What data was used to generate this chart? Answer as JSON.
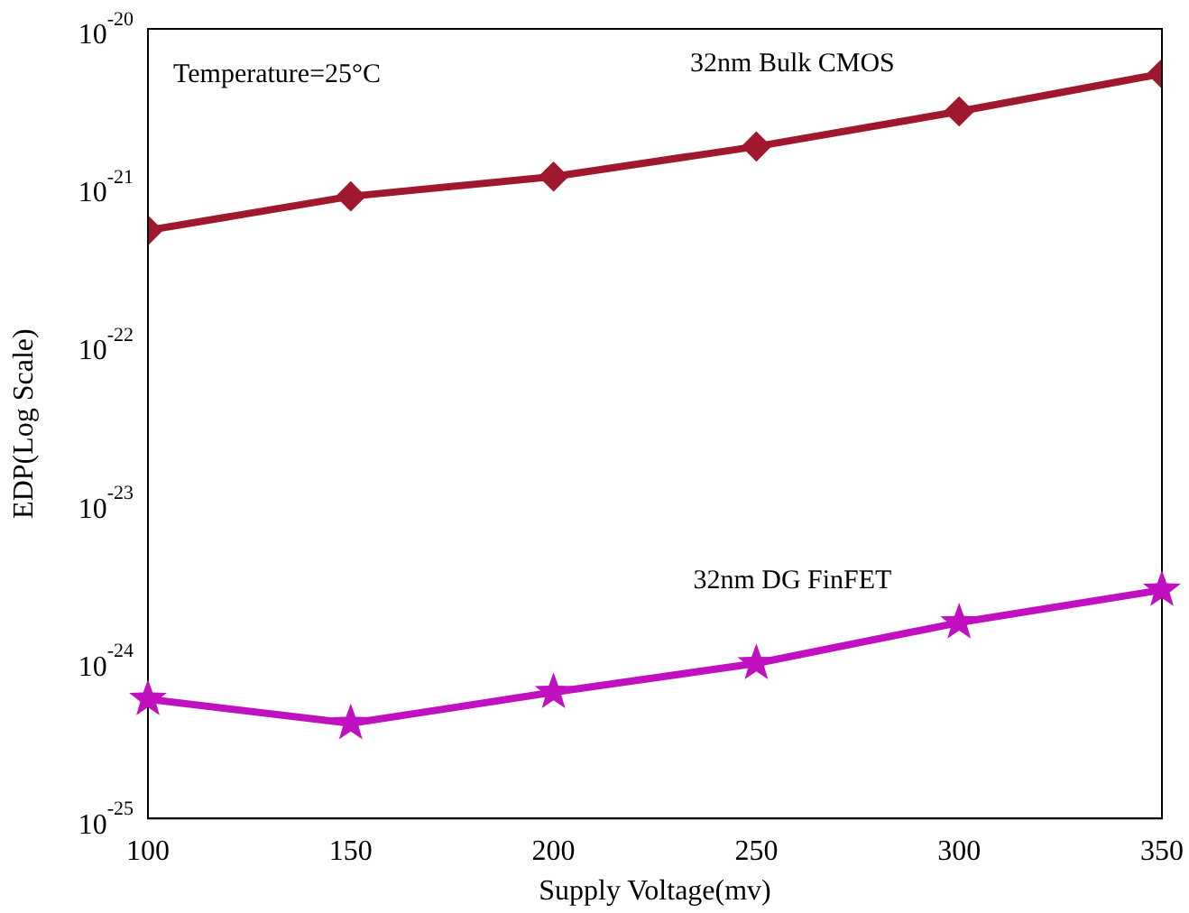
{
  "chart_data": {
    "type": "line",
    "xlabel": "Supply Voltage(mv)",
    "ylabel": "EDP(Log Scale)",
    "annotations": [
      "Temperature=25°C"
    ],
    "x": [
      100,
      150,
      200,
      250,
      300,
      350
    ],
    "series": [
      {
        "name": "32nm Bulk CMOS",
        "color": "#a0182e",
        "marker": "diamond",
        "values": [
          5.3e-22,
          8.7e-22,
          1.16e-21,
          1.8e-21,
          3e-21,
          5.2e-21
        ]
      },
      {
        "name": "32nm DG FinFET",
        "color": "#c010c0",
        "marker": "star",
        "values": [
          5.7e-25,
          4e-25,
          6.3e-25,
          9.6e-25,
          1.74e-24,
          2.8e-24
        ]
      }
    ],
    "log": "y",
    "xlim": [
      100,
      350
    ],
    "xticks": [
      100,
      150,
      200,
      250,
      300,
      350
    ],
    "ylim": [
      1e-25,
      1e-20
    ],
    "yticks": [
      {
        "value": 1e-25,
        "label": "10$^{-25}$"
      },
      {
        "value": 1e-24,
        "label": "10$^{-24}$"
      },
      {
        "value": 1e-23,
        "label": "10$^{-23}$"
      },
      {
        "value": 1e-22,
        "label": "10$^{-22}$"
      },
      {
        "value": 1e-21,
        "label": "10$^{-21}$"
      },
      {
        "value": 1e-20,
        "label": "10$^{-20}$"
      }
    ],
    "grid": false,
    "legend": false,
    "line_style": "solid"
  }
}
